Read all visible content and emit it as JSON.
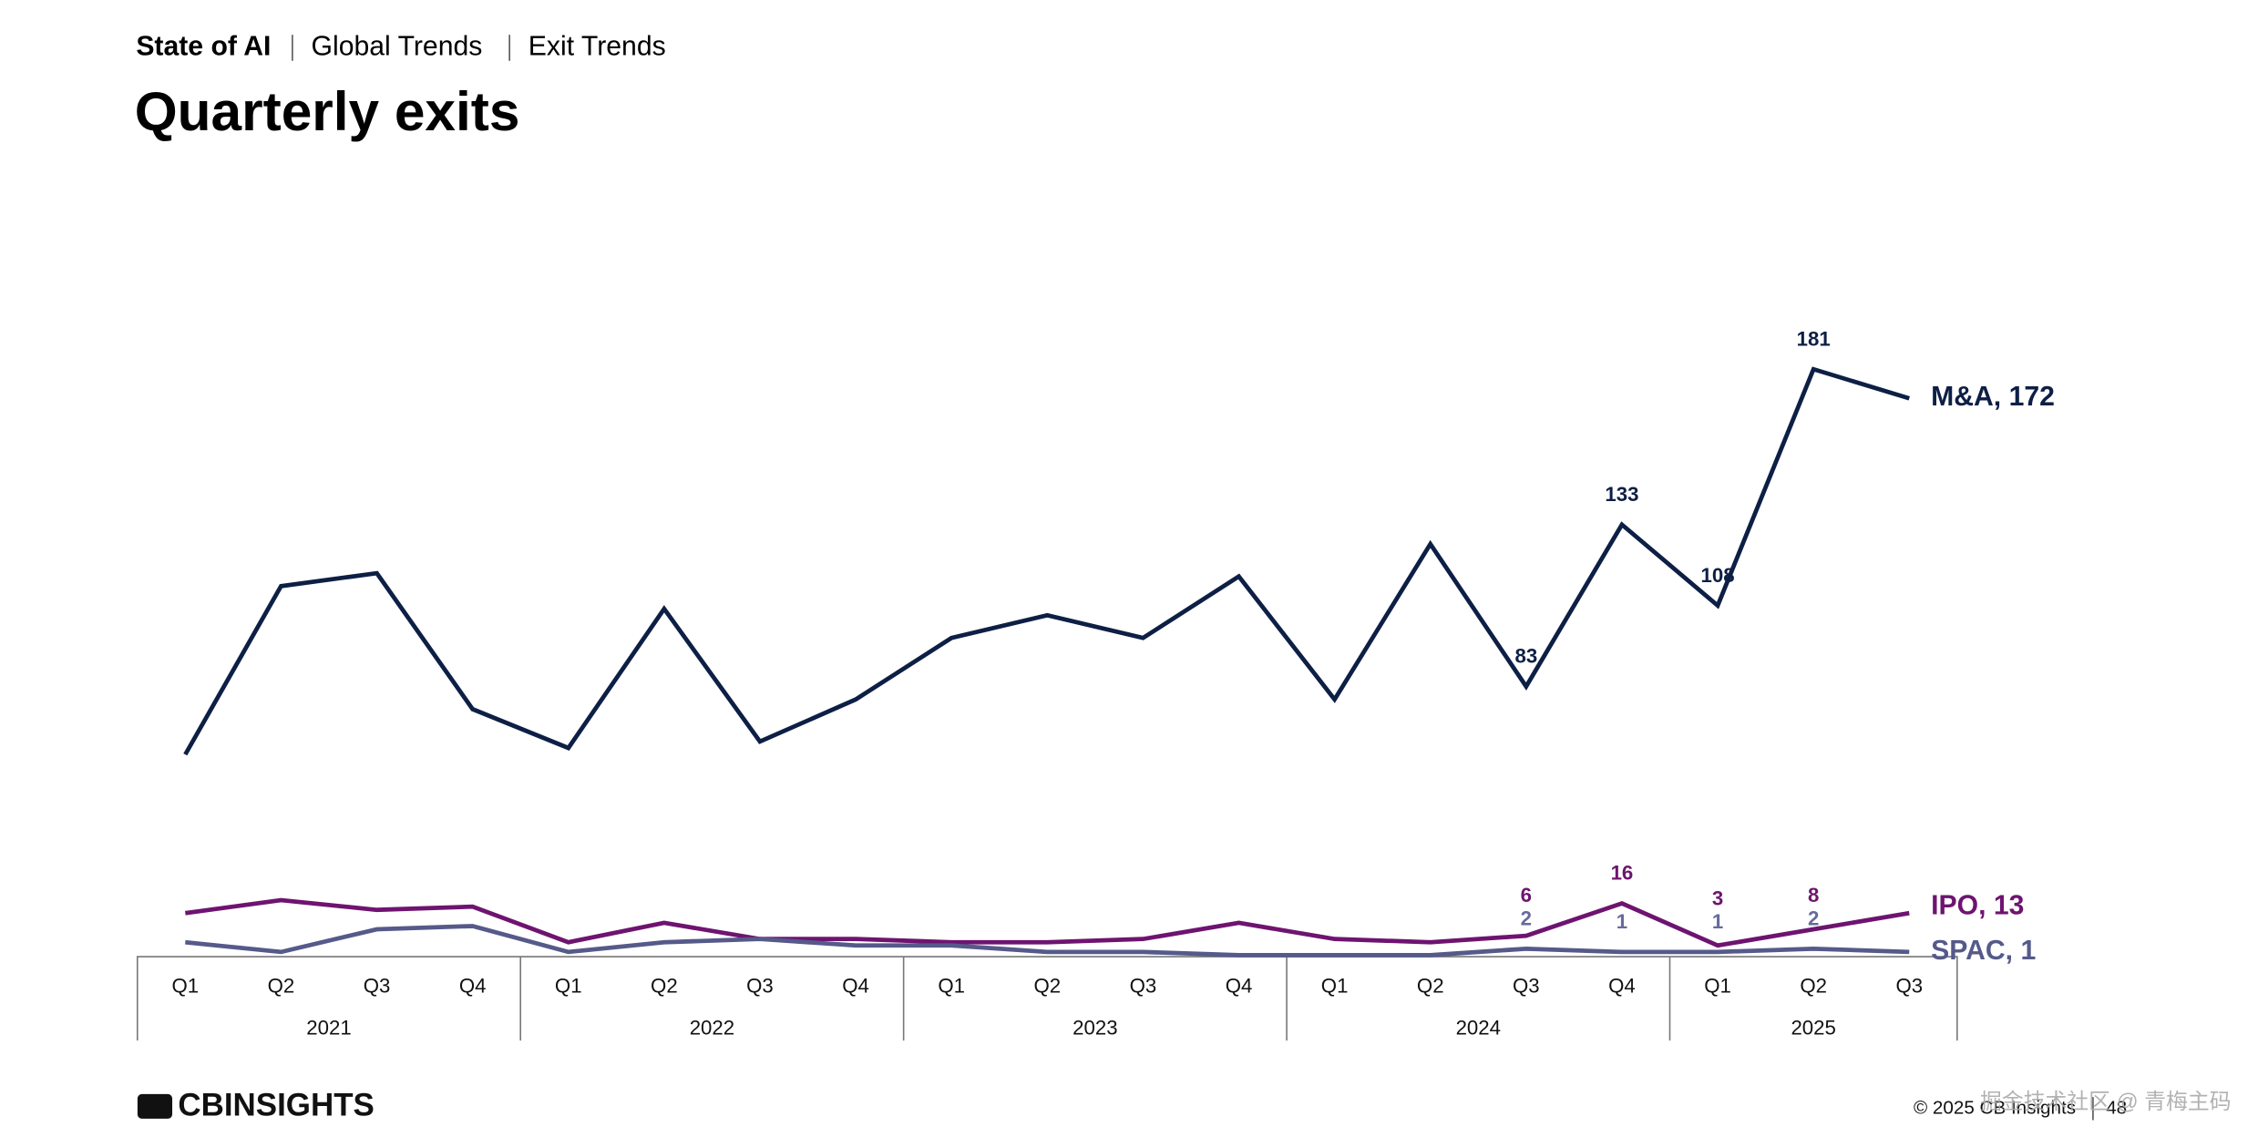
{
  "header": {
    "breadcrumb": [
      "State of AI",
      "Global Trends",
      "Exit Trends"
    ],
    "title": "Quarterly exits"
  },
  "chart_data": {
    "type": "line",
    "categories": [
      "Q1",
      "Q2",
      "Q3",
      "Q4",
      "Q1",
      "Q2",
      "Q3",
      "Q4",
      "Q1",
      "Q2",
      "Q3",
      "Q4",
      "Q1",
      "Q2",
      "Q3",
      "Q4",
      "Q1",
      "Q2",
      "Q3"
    ],
    "groups": [
      {
        "label": "2021",
        "span": 4
      },
      {
        "label": "2022",
        "span": 4
      },
      {
        "label": "2023",
        "span": 4
      },
      {
        "label": "2024",
        "span": 4
      },
      {
        "label": "2025",
        "span": 3
      }
    ],
    "ylim": [
      0,
      200
    ],
    "series": [
      {
        "name": "M&A",
        "end_label": "M&A, 172",
        "color": "#0d1f45",
        "label_color": "#0d1f45",
        "values": [
          62,
          114,
          118,
          76,
          64,
          107,
          66,
          79,
          98,
          105,
          98,
          117,
          79,
          127,
          83,
          133,
          108,
          181,
          172
        ],
        "labeled_points": [
          14,
          15,
          16,
          17
        ]
      },
      {
        "name": "IPO",
        "end_label": "IPO, 13",
        "color": "#6e1470",
        "label_color": "#6e1470",
        "values": [
          13,
          17,
          14,
          15,
          4,
          10,
          5,
          5,
          4,
          4,
          5,
          10,
          5,
          4,
          6,
          16,
          3,
          8,
          13
        ],
        "labeled_points": [
          14,
          15,
          16,
          17
        ]
      },
      {
        "name": "SPAC",
        "end_label": "SPAC, 1",
        "color": "#555a8a",
        "label_color": "#666a9c",
        "values": [
          4,
          1,
          8,
          9,
          1,
          4,
          5,
          3,
          3,
          1,
          1,
          0,
          0,
          0,
          2,
          1,
          1,
          2,
          1
        ],
        "labeled_points": [
          14,
          15,
          16,
          17
        ]
      }
    ]
  },
  "footer": {
    "logo": "CBINSIGHTS",
    "copyright": "© 2025 CB Insights",
    "page": "48",
    "watermark": "掘金技术社区 @ 青梅主码"
  }
}
